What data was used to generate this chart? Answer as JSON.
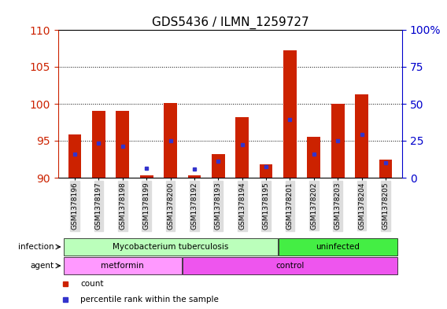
{
  "title": "GDS5436 / ILMN_1259727",
  "samples": [
    "GSM1378196",
    "GSM1378197",
    "GSM1378198",
    "GSM1378199",
    "GSM1378200",
    "GSM1378192",
    "GSM1378193",
    "GSM1378194",
    "GSM1378195",
    "GSM1378201",
    "GSM1378202",
    "GSM1378203",
    "GSM1378204",
    "GSM1378205"
  ],
  "red_bar_top": [
    95.8,
    99.0,
    99.0,
    90.3,
    100.1,
    90.3,
    93.2,
    98.2,
    91.8,
    107.2,
    95.5,
    100.0,
    101.3,
    92.5
  ],
  "blue_square_y": [
    93.2,
    94.7,
    94.3,
    91.3,
    95.0,
    91.2,
    92.2,
    94.5,
    91.5,
    97.9,
    93.2,
    95.0,
    95.8,
    92.0
  ],
  "red_bar_base": 90.0,
  "ylim_left": [
    90,
    110
  ],
  "ylim_right": [
    0,
    100
  ],
  "yticks_left": [
    90,
    95,
    100,
    105,
    110
  ],
  "yticks_right": [
    0,
    25,
    50,
    75,
    100
  ],
  "ytick_labels_right": [
    "0",
    "25",
    "50",
    "75",
    "100%"
  ],
  "bar_color": "#cc2200",
  "blue_color": "#3333cc",
  "infection_groups": [
    {
      "label": "Mycobacterium tuberculosis",
      "start": 0,
      "end": 9,
      "color": "#bbffbb"
    },
    {
      "label": "uninfected",
      "start": 9,
      "end": 14,
      "color": "#44ee44"
    }
  ],
  "agent_groups": [
    {
      "label": "metformin",
      "start": 0,
      "end": 5,
      "color": "#ff99ff"
    },
    {
      "label": "control",
      "start": 5,
      "end": 14,
      "color": "#ee55ee"
    }
  ],
  "infection_label": "infection",
  "agent_label": "agent",
  "legend_count": "count",
  "legend_percentile": "percentile rank within the sample",
  "bg_color": "#ffffff",
  "tick_color_left": "#cc2200",
  "tick_color_right": "#0000cc",
  "bar_width": 0.55,
  "xtick_bg": "#dddddd"
}
